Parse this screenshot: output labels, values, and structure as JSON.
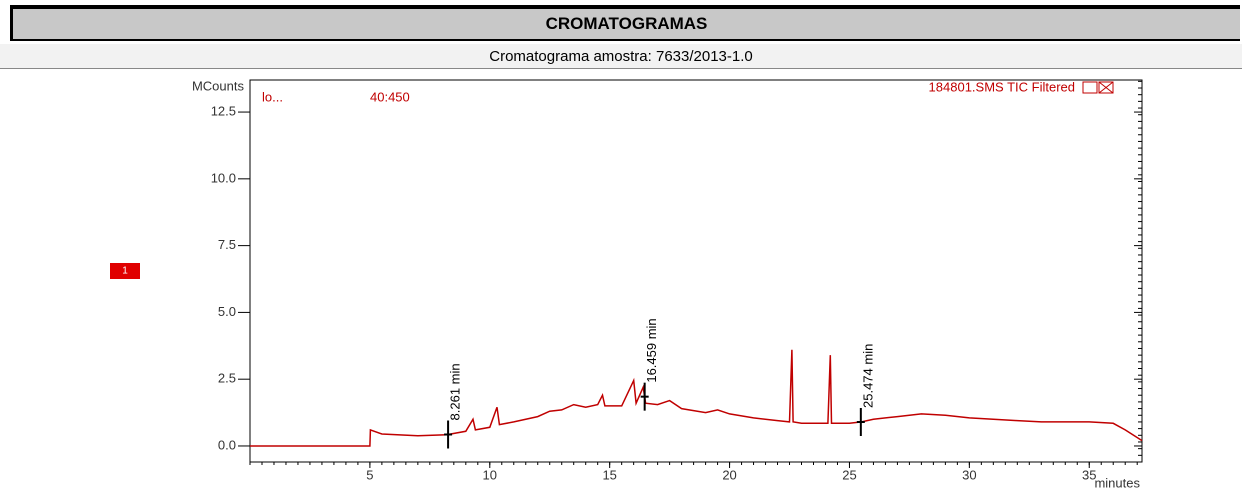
{
  "header": {
    "title": "CROMATOGRAMAS",
    "subtitle": "Cromatograma amostra: 7633/2013-1.0"
  },
  "chart_data": {
    "type": "line",
    "y_label": "MCounts",
    "x_label": "minutes",
    "file_label": "184801.SMS TIC Filtered",
    "left_label": "lo...",
    "mass_range": "40:450",
    "trace_marker": "1",
    "x": [
      0,
      5,
      5.02,
      5.5,
      7,
      8.2,
      9,
      9.3,
      9.4,
      10,
      10.3,
      10.4,
      11,
      12,
      12.5,
      13,
      13.5,
      14,
      14.5,
      14.7,
      14.8,
      15.5,
      16,
      16.1,
      16.4,
      16.5,
      17,
      17.5,
      18,
      19,
      19.5,
      20,
      21,
      22,
      22.5,
      22.6,
      22.65,
      23,
      24.1,
      24.2,
      24.25,
      25,
      25.5,
      26,
      27,
      28,
      29,
      30,
      31,
      32,
      33,
      34,
      35,
      36,
      36.5,
      37.2
    ],
    "series": [
      {
        "color": "#c00000",
        "values": [
          0,
          0,
          0.6,
          0.45,
          0.38,
          0.42,
          0.55,
          1.0,
          0.6,
          0.7,
          1.45,
          0.8,
          0.9,
          1.1,
          1.3,
          1.35,
          1.55,
          1.45,
          1.55,
          1.9,
          1.5,
          1.5,
          2.45,
          1.6,
          2.2,
          1.6,
          1.55,
          1.7,
          1.4,
          1.25,
          1.35,
          1.2,
          1.05,
          0.95,
          0.9,
          3.6,
          0.9,
          0.85,
          0.85,
          3.4,
          0.85,
          0.85,
          0.9,
          1.0,
          1.1,
          1.2,
          1.15,
          1.05,
          1.0,
          0.95,
          0.9,
          0.9,
          0.9,
          0.85,
          0.6,
          0.2
        ]
      }
    ],
    "peaks": [
      {
        "x": 8.261,
        "label": "8.261 min"
      },
      {
        "x": 16.459,
        "label": "16.459 min"
      },
      {
        "x": 25.474,
        "label": "25.474 min"
      }
    ],
    "xlim": [
      0,
      37.2
    ],
    "ylim": [
      -0.6,
      13.7
    ],
    "xticks": [
      5,
      10,
      15,
      20,
      25,
      30,
      35
    ],
    "yticks": [
      {
        "value": 0,
        "label": "0.0"
      },
      2.5,
      {
        "value": 5,
        "label": "5.0"
      },
      7.5,
      {
        "value": 10,
        "label": "10.0"
      },
      12.5
    ]
  }
}
